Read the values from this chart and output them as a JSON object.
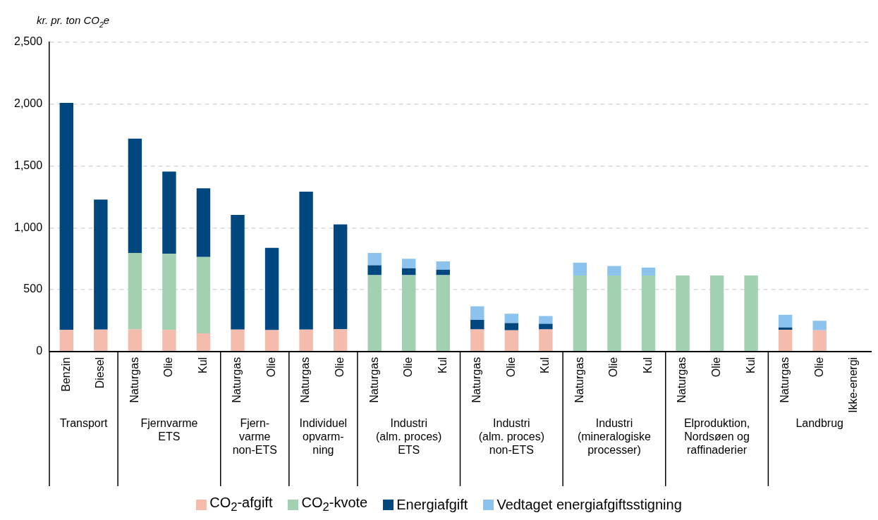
{
  "chart_data": {
    "type": "bar",
    "stacked": true,
    "ylabel": "kr. pr. ton CO$_{2}$e",
    "categories": [
      "Benzin",
      "Diesel",
      "Naturgas",
      "Olie",
      "Kul",
      "Naturgas",
      "Olie",
      "Naturgas",
      "Olie",
      "Naturgas",
      "Olie",
      "Kul",
      "Naturgas",
      "Olie",
      "Kul",
      "Naturgas",
      "Olie",
      "Kul",
      "Naturgas",
      "Olie",
      "Kul",
      "Naturgas",
      "Olie",
      "Ikke-energi"
    ],
    "series": [
      {
        "name": "CO$_{2}$-afgift",
        "color": "#f4bcad",
        "values": [
          175,
          177,
          180,
          175,
          147,
          177,
          173,
          177,
          180,
          null,
          null,
          null,
          178,
          172,
          178,
          null,
          null,
          null,
          null,
          null,
          null,
          176,
          172,
          null
        ]
      },
      {
        "name": "CO$_{2}$-kvote",
        "color": "#a2d0b0",
        "values": [
          null,
          null,
          616,
          615,
          617,
          null,
          null,
          null,
          null,
          617,
          617,
          617,
          null,
          null,
          null,
          615,
          615,
          615,
          615,
          615,
          615,
          null,
          null,
          null
        ]
      },
      {
        "name": "Energiafgift",
        "color": "#00467f",
        "values": [
          1835,
          1051,
          925,
          665,
          555,
          927,
          665,
          1115,
          848,
          80,
          56,
          44,
          77,
          58,
          46,
          null,
          null,
          null,
          null,
          null,
          null,
          18,
          null,
          null
        ]
      },
      {
        "name": "Vedtaget energiafgiftsstigning",
        "color": "#8cc3ee",
        "values": [
          null,
          null,
          null,
          null,
          null,
          null,
          null,
          null,
          null,
          100,
          76,
          68,
          110,
          75,
          63,
          104,
          76,
          64,
          null,
          null,
          null,
          103,
          76,
          null
        ]
      }
    ],
    "ylim": [
      0,
      2500
    ],
    "yticks": [
      0,
      500,
      {
        "value": 1000,
        "label": "1,000"
      },
      {
        "value": 1500,
        "label": "1,500"
      },
      {
        "value": 2000,
        "label": "2,000"
      },
      {
        "value": 2500,
        "label": "2,500"
      }
    ],
    "grid": "y",
    "legend": "bottom",
    "annotations": [
      "Transport",
      "Fjernvarme\nETS",
      "Fjern-\nvarme\nnon-ETS",
      "Individuel\nopvarm-\nning",
      "Industri\n(alm. proces)\nETS",
      "Industri\n(alm. proces)\nnon-ETS",
      "Industri\n(mineralogiske\nprocesser)",
      "Elproduktion,\nNordsøen og\nraffinaderier",
      "Landbrug"
    ]
  }
}
